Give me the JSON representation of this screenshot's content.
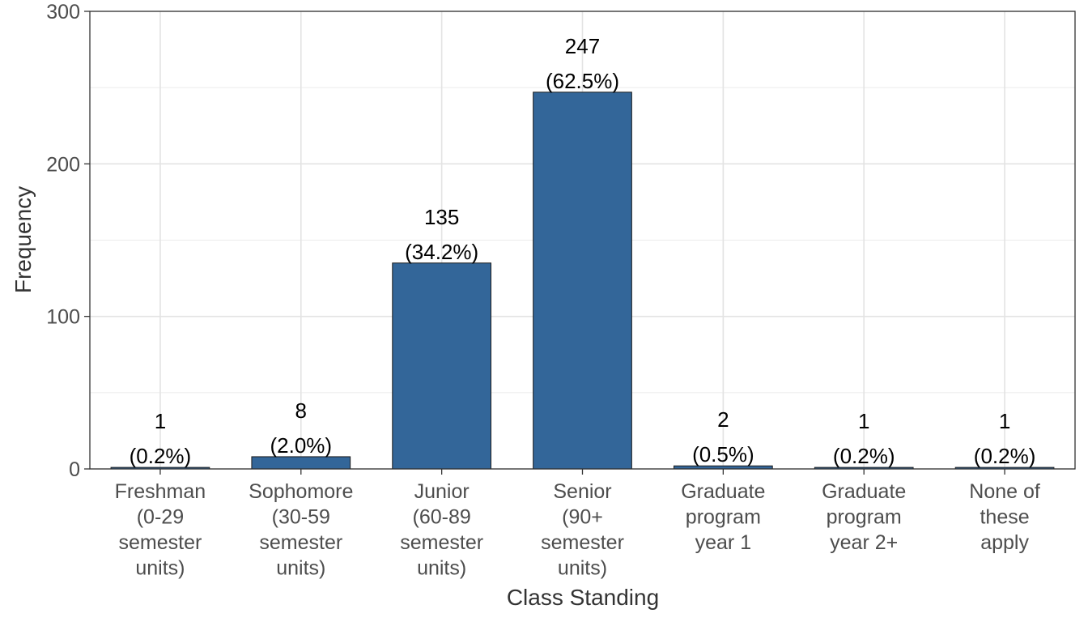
{
  "chart_data": {
    "type": "bar",
    "categories": [
      [
        "Freshman",
        "(0-29",
        "semester",
        "units)"
      ],
      [
        "Sophomore",
        "(30-59",
        "semester",
        "units)"
      ],
      [
        "Junior",
        "(60-89",
        "semester",
        "units)"
      ],
      [
        "Senior",
        "(90+",
        "semester",
        "units)"
      ],
      [
        "Graduate",
        "program",
        "year 1"
      ],
      [
        "Graduate",
        "program",
        "year 2+"
      ],
      [
        "None of",
        "these",
        "apply"
      ]
    ],
    "values": [
      1,
      8,
      135,
      247,
      2,
      1,
      1
    ],
    "data_labels": [
      [
        "1",
        "(0.2%)"
      ],
      [
        "8",
        "(2.0%)"
      ],
      [
        "135",
        "(34.2%)"
      ],
      [
        "247",
        "(62.5%)"
      ],
      [
        "2",
        "(0.5%)"
      ],
      [
        "1",
        "(0.2%)"
      ],
      [
        "1",
        "(0.2%)"
      ]
    ],
    "xlabel": "Class Standing",
    "ylabel": "Frequency",
    "ylim": [
      0,
      300
    ],
    "yticks": [
      "0",
      "100",
      "200",
      "300"
    ],
    "ytick_values": [
      0,
      100,
      200,
      300
    ],
    "grid": true,
    "bar_color": "#336699"
  }
}
